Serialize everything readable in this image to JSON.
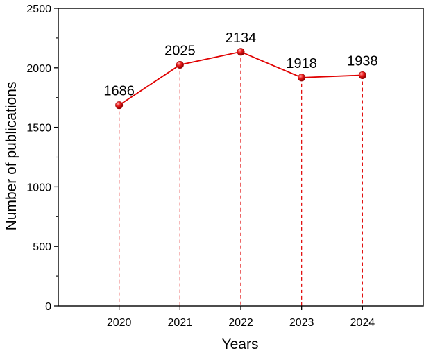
{
  "chart_data": {
    "type": "line",
    "title": "",
    "xlabel": "Years",
    "ylabel": "Number of publications",
    "categories": [
      "2020",
      "2021",
      "2022",
      "2023",
      "2024"
    ],
    "series": [
      {
        "values": [
          1686,
          2025,
          2134,
          1918,
          1938
        ],
        "color": "#e00000"
      }
    ],
    "data_labels": [
      "1686",
      "2025",
      "2134",
      "1918",
      "1938"
    ],
    "ylim": [
      0,
      2500
    ],
    "yticks": [
      0,
      500,
      1000,
      1500,
      2000,
      2500
    ],
    "ytick_labels": [
      "0",
      "500",
      "1000",
      "1500",
      "2000",
      "2500"
    ],
    "xtick_labels": [
      "2020",
      "2021",
      "2022",
      "2023",
      "2024"
    ],
    "drop_lines": true,
    "drop_line_color": "#e00000",
    "marker": "sphere",
    "grid": false,
    "legend": "none"
  }
}
